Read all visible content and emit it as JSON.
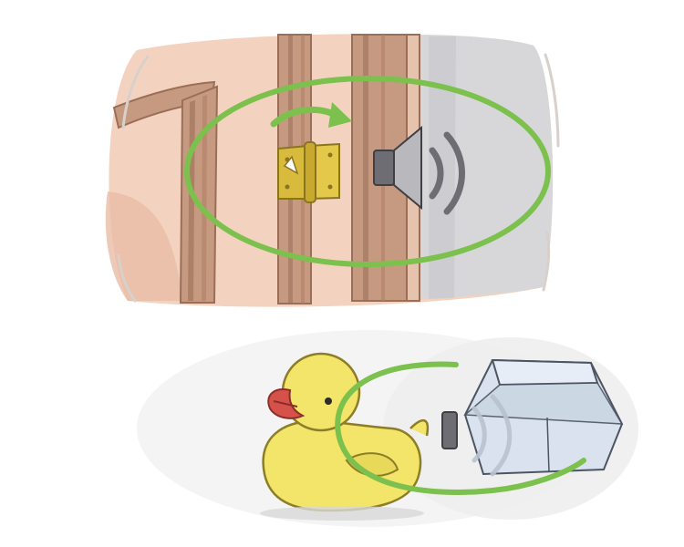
{
  "scene": {
    "top_panel": {
      "subject": "door-hinge-squeak",
      "icons": [
        "door-frame-icon",
        "hinge-icon",
        "rotate-arrow-icon",
        "speaker-icon",
        "sound-wave-icon",
        "highlight-ellipse-icon"
      ]
    },
    "bottom_panel": {
      "subject": "rubber-duck-squeak",
      "icons": [
        "rubber-duck-icon",
        "speaker-icon",
        "sound-wave-icon",
        "keycap-icon",
        "highlight-ellipse-icon"
      ]
    }
  },
  "colors": {
    "background": "#ffffff",
    "wall_peach": "#f3d3bf",
    "wood": "#c69a80",
    "wood_dark": "#9b6f57",
    "door_gray": "#d7d7da",
    "highlight_green": "#7cc04d",
    "hinge_gold": "#d8ba3c",
    "speaker_gray": "#6d6d73",
    "duck_yellow": "#f2e56a",
    "duck_beak": "#d7514b",
    "keycap_blue": "#d9e2ee"
  }
}
